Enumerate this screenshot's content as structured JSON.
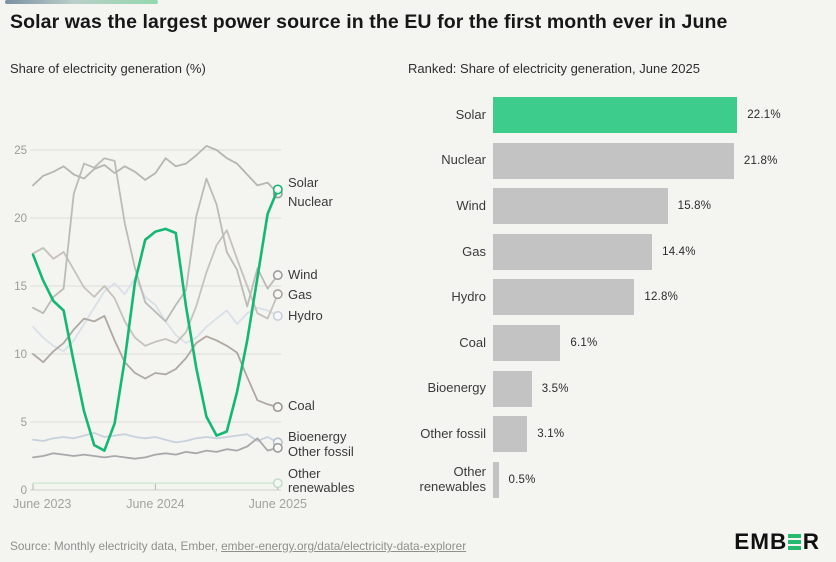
{
  "header": {
    "title": "Solar was the largest power source in the EU for the first month ever in June"
  },
  "line_chart_section": {
    "subtitle": "Share of electricity generation (%)"
  },
  "bar_chart_section": {
    "subtitle": "Ranked: Share of electricity generation, June 2025"
  },
  "footer": {
    "source_prefix": "Source: Monthly electricity data, Ember, ",
    "source_link_text": "ember-energy.org/data/electricity-data-explorer",
    "logo_left": "EMB",
    "logo_right": "R",
    "logo_bar_color": "#25ba6e"
  },
  "chart_data": [
    {
      "type": "line",
      "title": "Share of electricity generation (%)",
      "unit": "%",
      "x_months": [
        "Jun 2023",
        "Jul 2023",
        "Aug 2023",
        "Sep 2023",
        "Oct 2023",
        "Nov 2023",
        "Dec 2023",
        "Jan 2024",
        "Feb 2024",
        "Mar 2024",
        "Apr 2024",
        "May 2024",
        "Jun 2024",
        "Jul 2024",
        "Aug 2024",
        "Sep 2024",
        "Oct 2024",
        "Nov 2024",
        "Dec 2024",
        "Jan 2025",
        "Feb 2025",
        "Mar 2025",
        "Apr 2025",
        "May 2025",
        "Jun 2025"
      ],
      "x_axis_tick_labels": [
        "June 2023",
        "June 2024",
        "June 2025"
      ],
      "ylim": [
        0,
        25
      ],
      "yticks": [
        0,
        5,
        10,
        15,
        20,
        25
      ],
      "grid": true,
      "legend_position": "right-end-labels",
      "series": [
        {
          "name": "Solar",
          "color": "#14b873",
          "marker_color": "#14b873",
          "end_value": 22.1,
          "values": [
            17.3,
            15.4,
            13.9,
            13.2,
            9.4,
            5.8,
            3.3,
            2.9,
            4.9,
            9.6,
            15.3,
            18.4,
            19.0,
            19.2,
            18.9,
            13.5,
            9.0,
            5.4,
            4.0,
            4.3,
            7.2,
            11.0,
            15.6,
            20.3,
            22.1
          ]
        },
        {
          "name": "Nuclear",
          "color": "#b5b5b2",
          "marker_color": "#9d9d9d",
          "end_value": 21.8,
          "values": [
            22.4,
            23.1,
            23.4,
            23.8,
            23.2,
            22.9,
            23.6,
            23.9,
            23.3,
            23.8,
            23.4,
            22.8,
            23.3,
            24.4,
            23.8,
            24.0,
            24.6,
            25.3,
            25.0,
            24.4,
            24.0,
            23.2,
            22.4,
            22.6,
            21.8
          ]
        },
        {
          "name": "Wind",
          "color": "#bbbbb8",
          "marker_color": "#9d9d9d",
          "end_value": 15.8,
          "values": [
            13.4,
            13.0,
            14.2,
            14.8,
            21.8,
            24.0,
            23.7,
            24.4,
            24.2,
            19.6,
            16.3,
            13.8,
            13.1,
            12.4,
            13.6,
            14.7,
            20.1,
            22.9,
            21.0,
            17.5,
            16.2,
            13.5,
            16.3,
            14.8,
            15.8
          ]
        },
        {
          "name": "Gas",
          "color": "#c6c1bb",
          "marker_color": "#a9a49e",
          "end_value": 14.4,
          "values": [
            17.4,
            17.8,
            17.0,
            17.5,
            16.2,
            14.9,
            14.2,
            15.0,
            14.1,
            12.4,
            11.2,
            10.6,
            10.9,
            11.1,
            10.8,
            11.6,
            13.5,
            16.0,
            18.0,
            19.1,
            17.0,
            15.0,
            13.0,
            12.6,
            14.4
          ]
        },
        {
          "name": "Hydro",
          "color": "#d8e0e8",
          "marker_color": "#c7d1da",
          "end_value": 12.8,
          "values": [
            12.0,
            11.2,
            10.6,
            10.2,
            11.0,
            12.2,
            13.4,
            14.6,
            15.2,
            14.4,
            15.6,
            14.2,
            13.6,
            12.4,
            11.4,
            10.8,
            11.2,
            12.0,
            12.6,
            13.2,
            12.2,
            13.0,
            13.4,
            13.2,
            12.8
          ]
        },
        {
          "name": "Coal",
          "color": "#b0a9a2",
          "marker_color": "#9d968f",
          "end_value": 6.1,
          "values": [
            10.0,
            9.4,
            10.2,
            10.8,
            11.8,
            12.6,
            12.4,
            12.8,
            11.0,
            9.4,
            8.6,
            8.2,
            8.6,
            8.5,
            8.9,
            9.7,
            10.8,
            11.3,
            11.0,
            10.6,
            10.1,
            8.3,
            6.6,
            6.3,
            6.1
          ]
        },
        {
          "name": "Bioenergy",
          "color": "#c7d2de",
          "marker_color": "#b4c1cf",
          "end_value": 3.5,
          "values": [
            3.7,
            3.6,
            3.8,
            3.9,
            3.8,
            4.0,
            4.2,
            3.9,
            4.0,
            4.1,
            3.9,
            3.8,
            3.9,
            3.7,
            3.5,
            3.6,
            3.8,
            3.9,
            3.8,
            3.9,
            4.0,
            4.1,
            3.6,
            3.9,
            3.5
          ]
        },
        {
          "name": "Other fossil",
          "color": "#a9a9a9",
          "marker_color": "#9d9d9d",
          "end_value": 3.1,
          "values": [
            2.4,
            2.5,
            2.7,
            2.6,
            2.5,
            2.6,
            2.5,
            2.4,
            2.5,
            2.4,
            2.3,
            2.4,
            2.6,
            2.7,
            2.6,
            2.8,
            2.7,
            2.9,
            2.8,
            3.0,
            2.9,
            3.2,
            3.8,
            2.9,
            3.1
          ]
        },
        {
          "name": "Other renewables",
          "color": "#d6ead9",
          "marker_color": "#c4ddc8",
          "end_value": 0.5,
          "values": [
            0.5,
            0.5,
            0.5,
            0.5,
            0.5,
            0.5,
            0.5,
            0.5,
            0.5,
            0.5,
            0.5,
            0.5,
            0.5,
            0.5,
            0.5,
            0.5,
            0.5,
            0.5,
            0.5,
            0.5,
            0.5,
            0.5,
            0.5,
            0.5,
            0.5
          ]
        }
      ]
    },
    {
      "type": "bar",
      "title": "Ranked: Share of electricity generation, June 2025",
      "orientation": "horizontal",
      "categories": [
        "Solar",
        "Nuclear",
        "Wind",
        "Gas",
        "Hydro",
        "Coal",
        "Bioenergy",
        "Other fossil",
        "Other renewables"
      ],
      "values": [
        22.1,
        21.8,
        15.8,
        14.4,
        12.8,
        6.1,
        3.5,
        3.1,
        0.5
      ],
      "value_labels": [
        "22.1%",
        "21.8%",
        "15.8%",
        "14.4%",
        "12.8%",
        "6.1%",
        "3.5%",
        "3.1%",
        "0.5%"
      ],
      "xlim": [
        0,
        24
      ],
      "highlight_index": 0,
      "highlight_color": "#3ecc8c",
      "bar_color": "#c3c3c3"
    }
  ]
}
